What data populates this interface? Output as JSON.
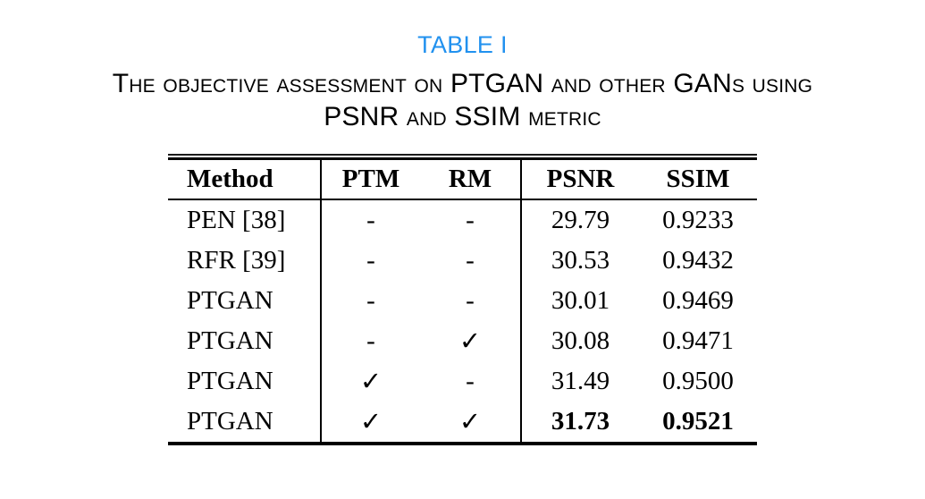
{
  "title": "TABLE I",
  "caption": {
    "line1": "The objective assessment on PTGAN and other GANs using",
    "line2": "PSNR and SSIM metric"
  },
  "colors": {
    "title_blue": "#2191ef",
    "text": "#000000"
  },
  "table": {
    "headers": {
      "method": "Method",
      "ptm": "PTM",
      "rm": "RM",
      "psnr": "PSNR",
      "ssim": "SSIM"
    },
    "rows": [
      {
        "method": "PEN [38]",
        "ptm": "-",
        "rm": "-",
        "psnr": "29.79",
        "ssim": "0.9233",
        "bold": false
      },
      {
        "method": "RFR [39]",
        "ptm": "-",
        "rm": "-",
        "psnr": "30.53",
        "ssim": "0.9432",
        "bold": false
      },
      {
        "method": "PTGAN",
        "ptm": "-",
        "rm": "-",
        "psnr": "30.01",
        "ssim": "0.9469",
        "bold": false
      },
      {
        "method": "PTGAN",
        "ptm": "-",
        "rm": "✓",
        "psnr": "30.08",
        "ssim": "0.9471",
        "bold": false
      },
      {
        "method": "PTGAN",
        "ptm": "✓",
        "rm": "-",
        "psnr": "31.49",
        "ssim": "0.9500",
        "bold": false
      },
      {
        "method": "PTGAN",
        "ptm": "✓",
        "rm": "✓",
        "psnr": "31.73",
        "ssim": "0.9521",
        "bold": true
      }
    ]
  }
}
